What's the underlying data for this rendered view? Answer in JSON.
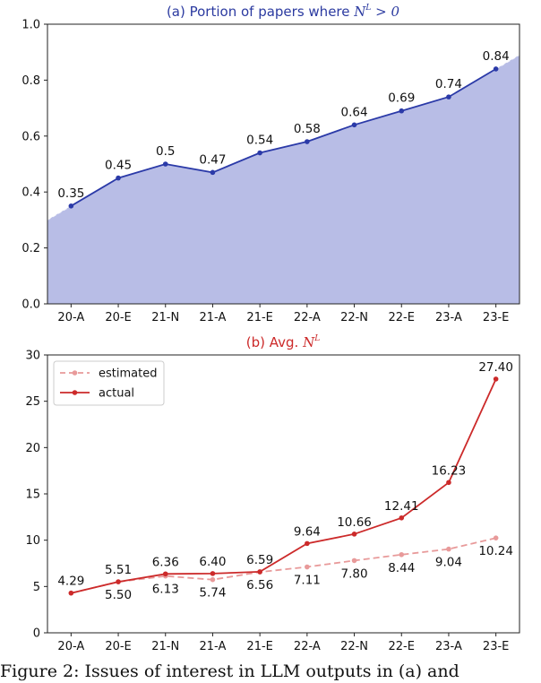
{
  "chart_data": [
    {
      "type": "area",
      "title": "(a) Portion of papers where N^L > 0",
      "title_color": "#2b3aa0",
      "categories": [
        "20-A",
        "20-E",
        "21-N",
        "21-A",
        "21-E",
        "22-A",
        "22-N",
        "22-E",
        "23-A",
        "23-E"
      ],
      "ylim": [
        0.0,
        1.0
      ],
      "yticks": [
        "0.0",
        "0.2",
        "0.4",
        "0.6",
        "0.8",
        "1.0"
      ],
      "yticks_values": [
        0.0,
        0.2,
        0.4,
        0.6,
        0.8,
        1.0
      ],
      "grid": false,
      "series": [
        {
          "values": [
            0.35,
            0.45,
            0.5,
            0.47,
            0.54,
            0.58,
            0.64,
            0.69,
            0.74,
            0.84
          ],
          "labels": [
            "0.35",
            "0.45",
            "0.5",
            "0.47",
            "0.54",
            "0.58",
            "0.64",
            "0.69",
            "0.74",
            "0.84"
          ],
          "color": "#2b3aa8",
          "fill": "#b8bde6"
        }
      ]
    },
    {
      "type": "line",
      "title": "(b) Avg. N^L",
      "title_color": "#cc2a2a",
      "categories": [
        "20-A",
        "20-E",
        "21-N",
        "21-A",
        "21-E",
        "22-A",
        "22-N",
        "22-E",
        "23-A",
        "23-E"
      ],
      "ylim": [
        0,
        30
      ],
      "yticks": [
        "0",
        "5",
        "10",
        "15",
        "20",
        "25",
        "30"
      ],
      "yticks_values": [
        0,
        5,
        10,
        15,
        20,
        25,
        30
      ],
      "grid": false,
      "legend": "top-left",
      "series": [
        {
          "name": "estimated",
          "values": [
            4.29,
            5.5,
            6.13,
            5.74,
            6.56,
            7.11,
            7.8,
            8.44,
            9.04,
            10.24
          ],
          "labels": [
            "4.29",
            "5.50",
            "6.13",
            "5.74",
            "6.56",
            "7.11",
            "7.80",
            "8.44",
            "9.04",
            "10.24"
          ],
          "color": "#e89a9a",
          "style": "dashed"
        },
        {
          "name": "actual",
          "values": [
            4.29,
            5.51,
            6.36,
            6.4,
            6.59,
            9.64,
            10.66,
            12.41,
            16.23,
            27.4
          ],
          "labels": [
            "",
            "5.51",
            "6.36",
            "6.40",
            "6.59",
            "9.64",
            "10.66",
            "12.41",
            "16.23",
            "27.40"
          ],
          "color": "#cc2a2a",
          "style": "solid"
        }
      ]
    }
  ],
  "caption": "Figure 2: Issues of interest in LLM outputs in (a) and"
}
